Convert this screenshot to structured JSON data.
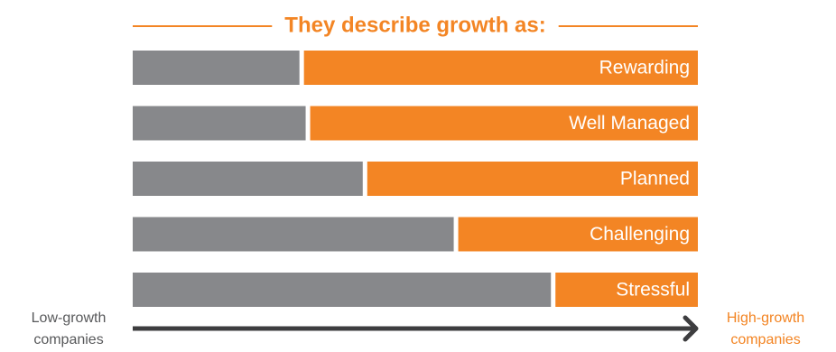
{
  "chart_data": {
    "type": "bar",
    "orientation": "horizontal",
    "stacked": true,
    "title": "They describe growth as:",
    "categories": [
      "Rewarding",
      "Well Managed",
      "Planned",
      "Challenging",
      "Stressful"
    ],
    "series": [
      {
        "values": [
          0.295,
          0.306,
          0.407,
          0.568,
          0.74
        ]
      },
      {
        "values": [
          0.705,
          0.694,
          0.593,
          0.432,
          0.26
        ]
      }
    ],
    "xlim": [
      0,
      1
    ],
    "grid": false,
    "axis": {
      "start_label": "Low-growth companies",
      "end_label": "High-growth companies"
    }
  },
  "colors": {
    "accent": "#f38524",
    "gray_segment": "#87888b",
    "axis": "#3d3d3f",
    "label_text": "#58595b"
  }
}
